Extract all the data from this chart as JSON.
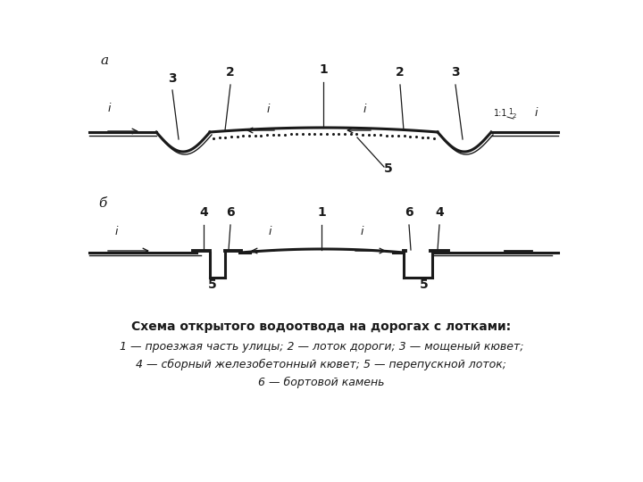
{
  "bg_color": "#ffffff",
  "line_color": "#1a1a1a",
  "title_line1": "Схема открытого водоотвода на дорогах с лотками:",
  "title_line2": "1 — проезжая часть улицы; 2 — лоток дороги; 3 — мощеный кювет;",
  "title_line3": "4 — сборный железобетонный кювет; 5 — перепускной лоток;",
  "title_line4": "6 — бортовой камень",
  "label_a": "а",
  "label_b": "б"
}
